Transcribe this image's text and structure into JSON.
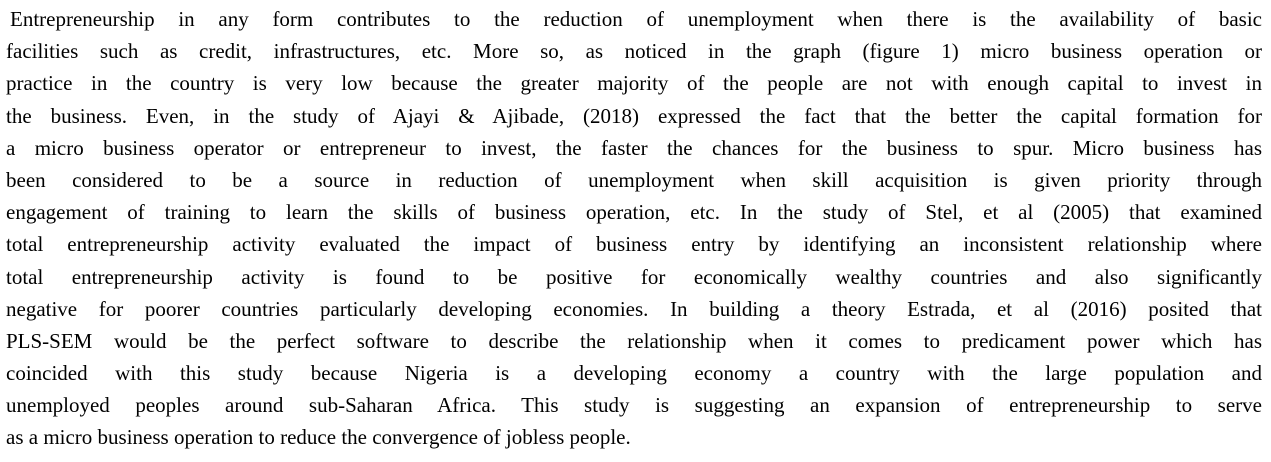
{
  "paragraph": {
    "lines": [
      "Entrepreneurship in any form contributes to the reduction of unemployment when there is the availability of basic",
      "facilities such as credit, infrastructures, etc. More so, as noticed in the graph (figure 1) micro business operation or",
      "practice in the country is very low because the greater majority of the people are not with enough capital to invest in",
      "the business. Even, in the study of Ajayi & Ajibade, (2018) expressed the fact that the better the capital formation for",
      "a micro business operator or entrepreneur to invest, the faster the chances for the business to spur. Micro business has",
      "been considered to be a source in reduction of unemployment when skill acquisition is given priority through",
      "engagement of training to learn the skills of business operation, etc. In the study of Stel, et al (2005) that examined",
      "total entrepreneurship activity evaluated the impact of business entry by identifying an inconsistent relationship where",
      "total entrepreneurship activity is found to be positive for economically wealthy countries and also significantly",
      "negative for poorer countries particularly developing economies. In building a theory Estrada, et al (2016) posited that",
      "PLS-SEM would be the perfect software to describe the relationship when it comes to predicament power which has",
      "coincided with this study because Nigeria is a developing economy a country with the large population and",
      "unemployed peoples around sub-Saharan Africa. This study is suggesting an expansion of entrepreneurship to serve",
      "as a micro business operation to reduce the convergence of jobless people."
    ]
  }
}
